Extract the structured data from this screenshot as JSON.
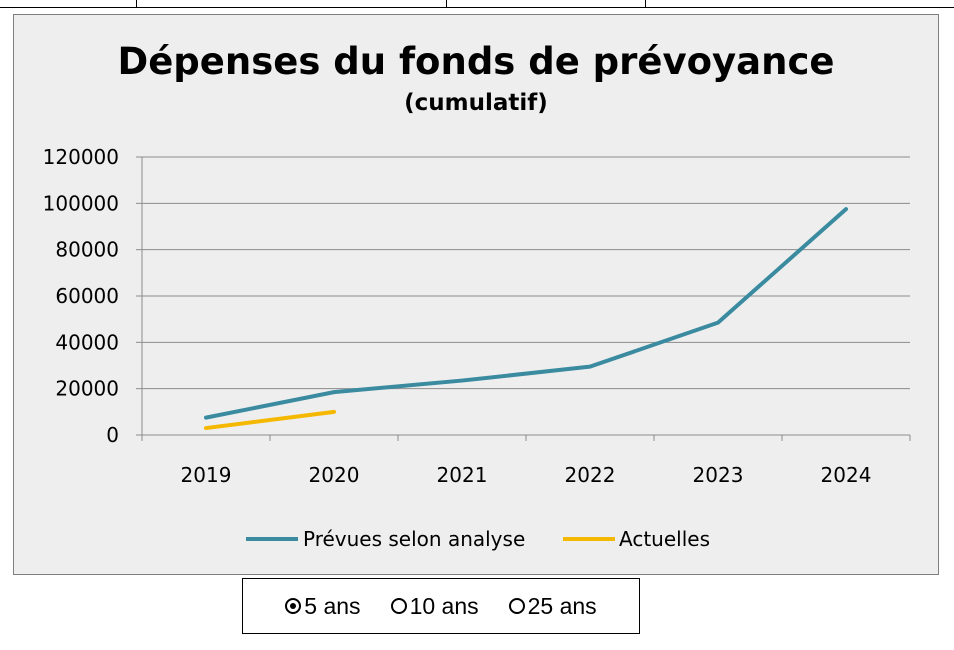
{
  "chart_data": {
    "type": "line",
    "title": "Dépenses du fonds de prévoyance",
    "subtitle": "(cumulatif)",
    "categories": [
      "2019",
      "2020",
      "2021",
      "2022",
      "2023",
      "2024"
    ],
    "ylim": [
      0,
      120000
    ],
    "yticks": [
      "0",
      "20000",
      "40000",
      "60000",
      "80000",
      "100000",
      "120000"
    ],
    "grid": true,
    "legend_position": "bottom",
    "series": [
      {
        "name": "Prévues selon analyse",
        "color": "#3a8ba0",
        "values": [
          7500,
          18500,
          23500,
          29500,
          48500,
          97500
        ]
      },
      {
        "name": "Actuelles",
        "color": "#f5b800",
        "values": [
          3000,
          10000,
          null,
          null,
          null,
          null
        ]
      }
    ]
  },
  "range_selector": {
    "options": [
      {
        "label": "5 ans",
        "selected": true
      },
      {
        "label": "10 ans",
        "selected": false
      },
      {
        "label": "25 ans",
        "selected": false
      }
    ]
  }
}
